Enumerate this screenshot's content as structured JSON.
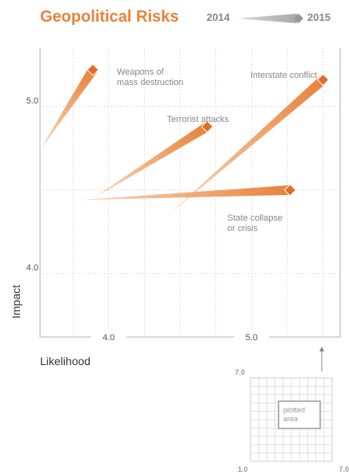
{
  "chart_data": {
    "type": "scatter",
    "title": "Geopolitical Risks",
    "legend": {
      "from": "2014",
      "to": "2015"
    },
    "xlabel": "Likelihood",
    "ylabel": "Impact",
    "xlim": [
      3.52,
      5.62
    ],
    "ylim": [
      3.62,
      5.35
    ],
    "x_ticks": [
      {
        "value": 4.0,
        "label": "4.0"
      },
      {
        "value": 5.0,
        "label": "5.0"
      }
    ],
    "y_ticks": [
      {
        "value": 4.0,
        "label": "4.0"
      },
      {
        "value": 5.0,
        "label": "5.0"
      }
    ],
    "grid": true,
    "series": [
      {
        "name": "Weapons of mass destruction",
        "label_lines": [
          "Weapons of",
          "mass destruction"
        ],
        "from": {
          "x": 3.52,
          "y": 4.74
        },
        "to": {
          "x": 3.89,
          "y": 5.22
        }
      },
      {
        "name": "Terrorist attacks",
        "label_lines": [
          "Terrorist attacks"
        ],
        "from": {
          "x": 3.89,
          "y": 4.45
        },
        "to": {
          "x": 4.69,
          "y": 4.88
        }
      },
      {
        "name": "Interstate conflict",
        "label_lines": [
          "Interstate conflict"
        ],
        "from": {
          "x": 4.43,
          "y": 4.36
        },
        "to": {
          "x": 5.5,
          "y": 5.16
        }
      },
      {
        "name": "State collapse or crisis",
        "label_lines": [
          "State collapse",
          "or crisis"
        ],
        "from": {
          "x": 3.79,
          "y": 4.44
        },
        "to": {
          "x": 5.27,
          "y": 4.5
        }
      }
    ],
    "inset": {
      "caption_lines": [
        "plotted",
        "area"
      ],
      "y_top": "7.0",
      "x_left": "1.0",
      "x_right": "7.0"
    }
  },
  "colors": {
    "accent": "#e8823a",
    "grid": "#cccccc",
    "axis": "#b0b0b0",
    "text": "#888888"
  }
}
